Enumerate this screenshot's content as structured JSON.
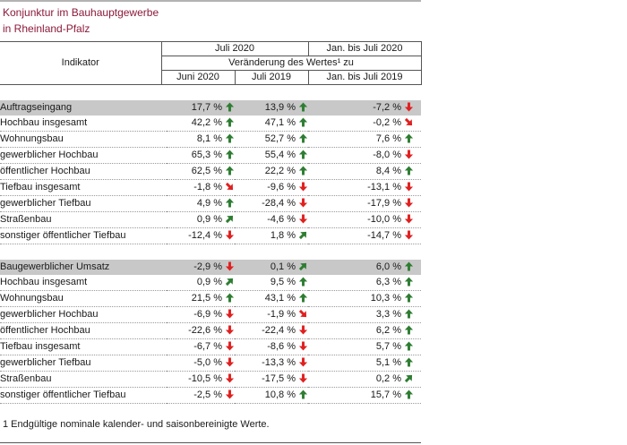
{
  "title_line1": "Konjunktur im Bauhauptgewerbe",
  "title_line2": "in Rheinland-Pfalz",
  "header": {
    "indikator": "Indikator",
    "juli2020": "Juli 2020",
    "jan_juli2020": "Jan. bis Juli 2020",
    "veraenderung": "Veränderung des Wertes¹ zu",
    "col_juni2020": "Juni 2020",
    "col_juli2019": "Juli 2019",
    "col_jan_juli2019": "Jan. bis Juli 2019"
  },
  "sections": [
    {
      "label": "Auftragseingang",
      "values": [
        {
          "text": "17,7 %",
          "arrow": "up"
        },
        {
          "text": "13,9 %",
          "arrow": "up"
        },
        {
          "text": "-7,2 %",
          "arrow": "down"
        }
      ],
      "rows": [
        {
          "label": "Hochbau insgesamt",
          "level": 2,
          "values": [
            {
              "text": "42,2 %",
              "arrow": "up"
            },
            {
              "text": "47,1 %",
              "arrow": "up"
            },
            {
              "text": "-0,2 %",
              "arrow": "down-right"
            }
          ]
        },
        {
          "label": "Wohnungsbau",
          "level": 3,
          "values": [
            {
              "text": "8,1 %",
              "arrow": "up"
            },
            {
              "text": "52,7 %",
              "arrow": "up"
            },
            {
              "text": "7,6 %",
              "arrow": "up"
            }
          ]
        },
        {
          "label": "gewerblicher Hochbau",
          "level": 3,
          "values": [
            {
              "text": "65,3 %",
              "arrow": "up"
            },
            {
              "text": "55,4 %",
              "arrow": "up"
            },
            {
              "text": "-8,0 %",
              "arrow": "down"
            }
          ]
        },
        {
          "label": "öffentlicher Hochbau",
          "level": 3,
          "values": [
            {
              "text": "62,5 %",
              "arrow": "up"
            },
            {
              "text": "22,2 %",
              "arrow": "up"
            },
            {
              "text": "8,4 %",
              "arrow": "up"
            }
          ]
        },
        {
          "label": "Tiefbau insgesamt",
          "level": 2,
          "values": [
            {
              "text": "-1,8 %",
              "arrow": "down-right"
            },
            {
              "text": "-9,6 %",
              "arrow": "down"
            },
            {
              "text": "-13,1 %",
              "arrow": "down"
            }
          ]
        },
        {
          "label": "gewerblicher Tiefbau",
          "level": 3,
          "values": [
            {
              "text": "4,9 %",
              "arrow": "up"
            },
            {
              "text": "-28,4 %",
              "arrow": "down"
            },
            {
              "text": "-17,9 %",
              "arrow": "down"
            }
          ]
        },
        {
          "label": "Straßenbau",
          "level": 3,
          "values": [
            {
              "text": "0,9 %",
              "arrow": "up-right"
            },
            {
              "text": "-4,6 %",
              "arrow": "down"
            },
            {
              "text": "-10,0 %",
              "arrow": "down"
            }
          ]
        },
        {
          "label": "sonstiger öffentlicher Tiefbau",
          "level": 3,
          "values": [
            {
              "text": "-12,4 %",
              "arrow": "down"
            },
            {
              "text": "1,8 %",
              "arrow": "up-right"
            },
            {
              "text": "-14,7 %",
              "arrow": "down"
            }
          ]
        }
      ]
    },
    {
      "label": "Baugewerblicher Umsatz",
      "values": [
        {
          "text": "-2,9 %",
          "arrow": "down"
        },
        {
          "text": "0,1 %",
          "arrow": "up-right"
        },
        {
          "text": "6,0 %",
          "arrow": "up"
        }
      ],
      "rows": [
        {
          "label": "Hochbau insgesamt",
          "level": 2,
          "values": [
            {
              "text": "0,9 %",
              "arrow": "up-right"
            },
            {
              "text": "9,5 %",
              "arrow": "up"
            },
            {
              "text": "6,3 %",
              "arrow": "up"
            }
          ]
        },
        {
          "label": "Wohnungsbau",
          "level": 3,
          "values": [
            {
              "text": "21,5 %",
              "arrow": "up"
            },
            {
              "text": "43,1 %",
              "arrow": "up"
            },
            {
              "text": "10,3 %",
              "arrow": "up"
            }
          ]
        },
        {
          "label": "gewerblicher Hochbau",
          "level": 3,
          "values": [
            {
              "text": "-6,9 %",
              "arrow": "down"
            },
            {
              "text": "-1,9 %",
              "arrow": "down-right"
            },
            {
              "text": "3,3 %",
              "arrow": "up"
            }
          ]
        },
        {
          "label": "öffentlicher Hochbau",
          "level": 3,
          "values": [
            {
              "text": "-22,6 %",
              "arrow": "down"
            },
            {
              "text": "-22,4 %",
              "arrow": "down"
            },
            {
              "text": "6,2 %",
              "arrow": "up"
            }
          ]
        },
        {
          "label": "Tiefbau insgesamt",
          "level": 2,
          "values": [
            {
              "text": "-6,7 %",
              "arrow": "down"
            },
            {
              "text": "-8,6 %",
              "arrow": "down"
            },
            {
              "text": "5,7 %",
              "arrow": "up"
            }
          ]
        },
        {
          "label": "gewerblicher Tiefbau",
          "level": 3,
          "values": [
            {
              "text": "-5,0 %",
              "arrow": "down"
            },
            {
              "text": "-13,3 %",
              "arrow": "down"
            },
            {
              "text": "5,1 %",
              "arrow": "up"
            }
          ]
        },
        {
          "label": "Straßenbau",
          "level": 3,
          "values": [
            {
              "text": "-10,5 %",
              "arrow": "down"
            },
            {
              "text": "-17,5 %",
              "arrow": "down"
            },
            {
              "text": "0,2 %",
              "arrow": "up-right"
            }
          ]
        },
        {
          "label": "sonstiger öffentlicher Tiefbau",
          "level": 3,
          "values": [
            {
              "text": "-2,5 %",
              "arrow": "down"
            },
            {
              "text": "10,8 %",
              "arrow": "up"
            },
            {
              "text": "15,7 %",
              "arrow": "up"
            }
          ]
        }
      ]
    }
  ],
  "footnote": "1 Endgültige nominale kalender- und saisonbereinigte Werte.",
  "colors": {
    "title": "#8b1a3a",
    "up": "#2e7d32",
    "down": "#e02020",
    "section_bg": "#c8c8c8"
  }
}
